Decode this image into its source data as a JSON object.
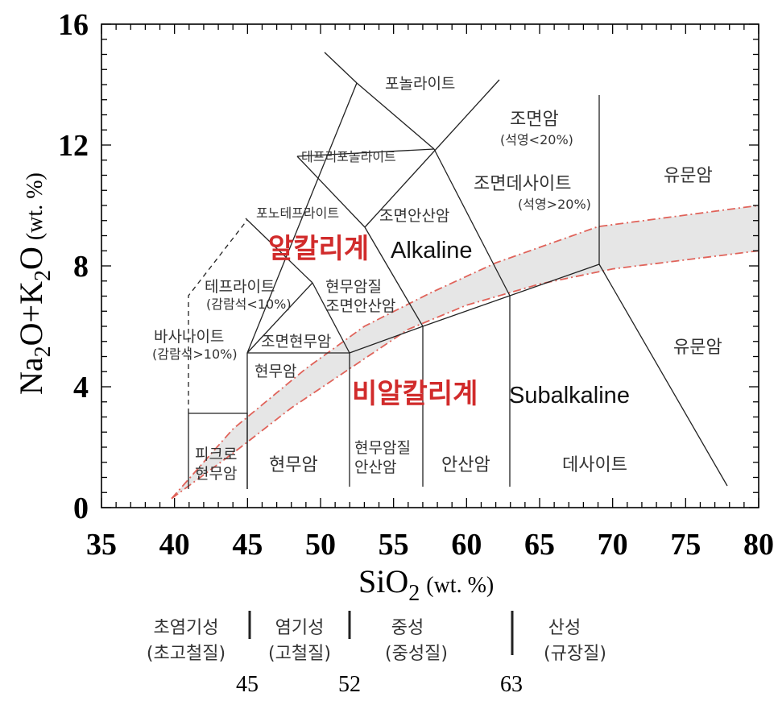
{
  "chart_data": {
    "type": "diagram",
    "xlabel": "SiO",
    "xlabel_sub": "2",
    "xlabel_unit": "(wt. %)",
    "ylabel_parts": [
      "Na",
      "2",
      "O+K",
      "2",
      "O"
    ],
    "ylabel_unit": "(wt. %)",
    "xlim": [
      35,
      80
    ],
    "ylim": [
      0,
      16
    ],
    "x_ticks": [
      "35",
      "40",
      "45",
      "50",
      "55",
      "60",
      "65",
      "70",
      "75",
      "80"
    ],
    "y_ticks": [
      "0",
      "4",
      "8",
      "12",
      "16"
    ],
    "field_labels": {
      "foidite": "포놀라이트",
      "tephriphonolite": "테프리포놀라이트",
      "phonotephrite": "포노테프라이트",
      "tephrite": "테프라이트",
      "tephrite_note": "(감람석<10%)",
      "basanite": "바사나이트",
      "basanite_note": "(감람석>10%)",
      "trachyte": "조면암",
      "trachyte_note": "(석영<20%)",
      "trachydacite": "조면데사이트",
      "trachydacite_note": "(석영>20%)",
      "trachyandesite": "조면안산암",
      "basaltic_trachyandesite_1": "현무암질",
      "basaltic_trachyandesite_2": "조면안산암",
      "trachybasalt": "조면현무암",
      "subalk_basalt_upper": "현무암",
      "picrobasalt_1": "피크로",
      "picrobasalt_2": "현무암",
      "basalt": "현무암",
      "basaltic_andesite_1": "현무암질",
      "basaltic_andesite_2": "안산암",
      "andesite": "안산암",
      "dacite": "데사이트",
      "rhyolite_upper": "유문암",
      "rhyolite_lower": "유문암"
    },
    "series_labels": {
      "alkaline_ko": "알칼리계",
      "alkaline_en": "Alkaline",
      "subalkaline_ko": "비알칼리계",
      "subalkaline_en": "Subalkaline"
    },
    "classification": [
      {
        "line1": "초염기성",
        "line2": "(초고철질)"
      },
      {
        "line1": "염기성",
        "line2": "(고철질)"
      },
      {
        "line1": "중성",
        "line2": "(중성질)"
      },
      {
        "line1": "산성",
        "line2": "(규장질)"
      }
    ],
    "classification_boundaries": [
      "45",
      "52",
      "63"
    ],
    "band_upper": [
      [
        39.8,
        0.3
      ],
      [
        44,
        2.6
      ],
      [
        49,
        4.6
      ],
      [
        53,
        6.0
      ],
      [
        57.5,
        7.1
      ],
      [
        62,
        8.1
      ],
      [
        69,
        9.3
      ],
      [
        80,
        10.0
      ]
    ],
    "band_lower": [
      [
        39.8,
        0.3
      ],
      [
        44,
        1.8
      ],
      [
        48,
        3.3
      ],
      [
        52,
        4.6
      ],
      [
        56,
        5.9
      ],
      [
        60,
        6.7
      ],
      [
        65,
        7.4
      ],
      [
        70,
        7.9
      ],
      [
        80,
        8.5
      ]
    ],
    "colors": {
      "band_fill": "#e6e6e6",
      "band_line": "#e0635a",
      "highlight": "#d12b2b"
    }
  }
}
